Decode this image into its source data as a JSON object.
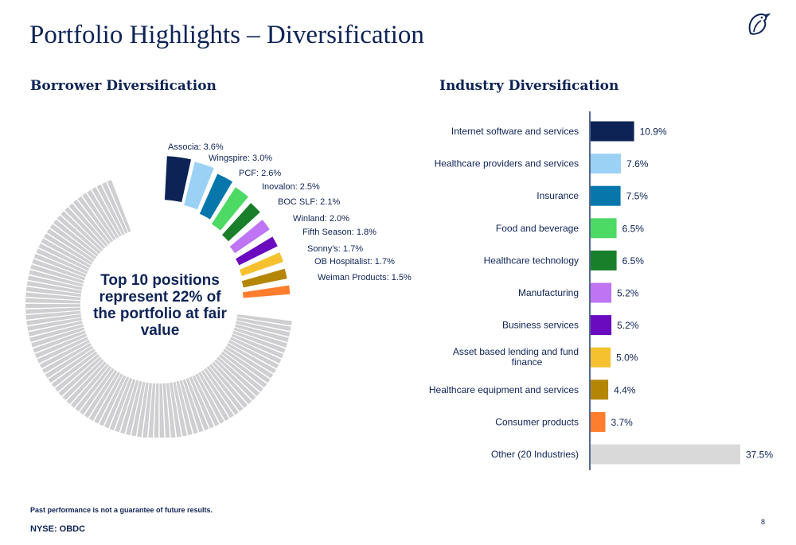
{
  "header": {
    "title": "Portfolio Highlights – Diversification",
    "logo_icon": "bird-logo-icon"
  },
  "borrower": {
    "heading": "Borrower Diversification",
    "center_text": "Top 10 positions represent 22% of the portfolio at fair value"
  },
  "industry": {
    "heading": "Industry Diversification"
  },
  "chart_data": [
    {
      "type": "pie",
      "labels": [
        "Associa: 3.6%",
        "Wingspire: 3.0%",
        "PCF: 2.6%",
        "Inovalon: 2.5%",
        "BOC SLF: 2.1%",
        "Winland: 2.0%",
        "Fifth Season: 1.8%",
        "Sonny's: 1.7%",
        "OB Hospitalist: 1.7%",
        "Weiman Products: 1.5%"
      ],
      "values": [
        3.6,
        3.0,
        2.6,
        2.5,
        2.1,
        2.0,
        1.8,
        1.7,
        1.7,
        1.5
      ],
      "colors": [
        "#0d2356",
        "#9bd1f5",
        "#0777ab",
        "#4cd964",
        "#1a7f2b",
        "#be74f3",
        "#6a0bbf",
        "#f5c12e",
        "#b58605",
        "#ff7e2d"
      ],
      "other_color": "#cfcfd1"
    },
    {
      "type": "bar",
      "orientation": "horizontal",
      "categories": [
        "Internet software and services",
        "Healthcare providers and services",
        "Insurance",
        "Food and beverage",
        "Healthcare technology",
        "Manufacturing",
        "Business services",
        "Asset based lending and fund finance",
        "Healthcare equipment and services",
        "Consumer products",
        "Other (20 Industries)"
      ],
      "values": [
        10.9,
        7.6,
        7.5,
        6.5,
        6.5,
        5.2,
        5.2,
        5.0,
        4.4,
        3.7,
        37.5
      ],
      "value_labels": [
        "10.9%",
        "7.6%",
        "7.5%",
        "6.5%",
        "6.5%",
        "5.2%",
        "5.2%",
        "5.0%",
        "4.4%",
        "3.7%",
        "37.5%"
      ],
      "colors": [
        "#0d2356",
        "#9bd1f5",
        "#0777ab",
        "#4cd964",
        "#1a7f2b",
        "#be74f3",
        "#6a0bbf",
        "#f5c12e",
        "#b58605",
        "#ff7e2d",
        "#d9d9d9"
      ],
      "xlim": [
        0,
        37.5
      ]
    }
  ],
  "footer": {
    "disclaimer": "Past performance is not a guarantee of future results.",
    "ticker": "NYSE: OBDC",
    "page_number": "8"
  }
}
